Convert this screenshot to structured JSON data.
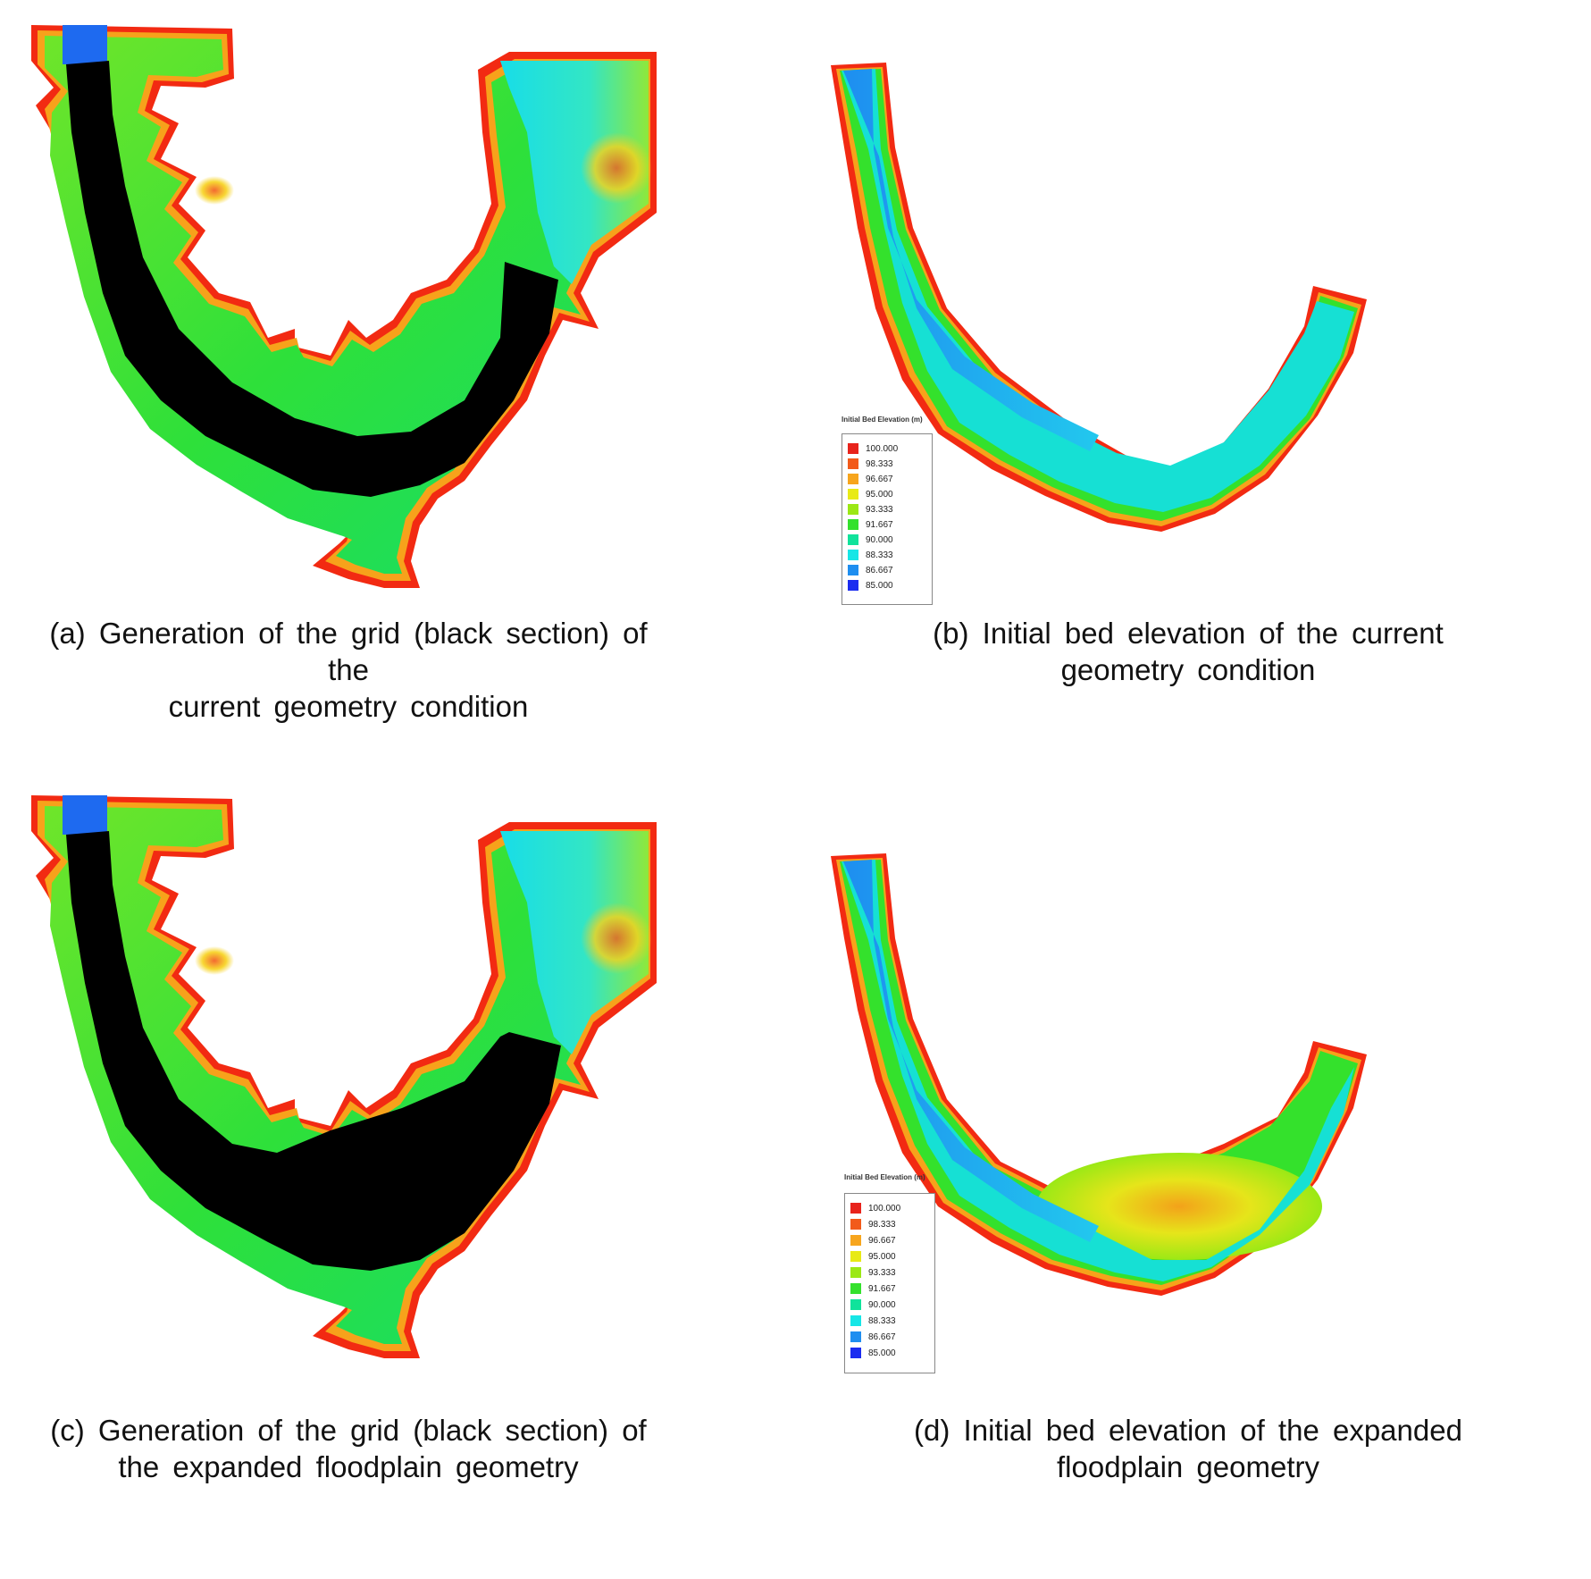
{
  "panels": {
    "a": {
      "caption_line1": "(a) Generation of the grid (black section) of the",
      "caption_line2": "current geometry condition"
    },
    "b": {
      "caption_line1": "(b) Initial bed elevation of the current",
      "caption_line2": "geometry condition"
    },
    "c": {
      "caption_line1": "(c) Generation of the grid (black section) of",
      "caption_line2": "the expanded floodplain geometry"
    },
    "d": {
      "caption_line1": "(d) Initial bed elevation of the expanded",
      "caption_line2": "floodplain geometry"
    }
  },
  "legend": {
    "title": "Initial Bed Elevation (m)",
    "entries": [
      {
        "value": "100.000",
        "color": "#e8231c"
      },
      {
        "value": "98.333",
        "color": "#f25a1a"
      },
      {
        "value": "96.667",
        "color": "#f7a51d"
      },
      {
        "value": "95.000",
        "color": "#e8ea16"
      },
      {
        "value": "93.333",
        "color": "#9be815"
      },
      {
        "value": "91.667",
        "color": "#34e12c"
      },
      {
        "value": "90.000",
        "color": "#10e39b"
      },
      {
        "value": "88.333",
        "color": "#16e6e6"
      },
      {
        "value": "86.667",
        "color": "#1e8ef0"
      },
      {
        "value": "85.000",
        "color": "#1b2cf0"
      }
    ]
  },
  "colors": {
    "grid_fill": "#000000",
    "floodplain_green": "#2ee03a",
    "bank_red": "#f22a12",
    "bank_orange": "#f7a21b",
    "channel_blue": "#2c8cf0",
    "cyan": "#1ee3e8"
  }
}
